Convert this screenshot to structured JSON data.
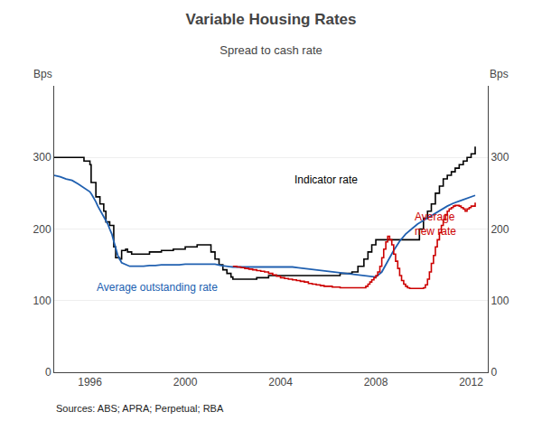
{
  "chart_data": {
    "type": "line",
    "title": "Variable Housing Rates",
    "subtitle": "Spread to cash rate",
    "ylabel": "Bps",
    "ylabel_right": "Bps",
    "source": "Sources: ABS; APRA; Perpetual; RBA",
    "xlim": [
      1994.5,
      2012.7
    ],
    "ylim": [
      0,
      400
    ],
    "yticks": [
      0,
      100,
      200,
      300
    ],
    "y2lim": [
      0,
      400
    ],
    "y2ticks": [
      0,
      100,
      200,
      300
    ],
    "xticks": [
      1996,
      2000,
      2004,
      2008,
      2012
    ],
    "grid": "y",
    "annotations": [
      {
        "text": "Indicator rate",
        "x": 2004.5,
        "y": 258,
        "color": "#000000"
      },
      {
        "text": "Average outstanding rate",
        "x": 1996.2,
        "y": 107,
        "color": "#2060b0"
      },
      {
        "text": "Average\nnew rate",
        "x": 2009.55,
        "y": 185,
        "color": "#cc0000"
      }
    ],
    "series": [
      {
        "type": "step",
        "color": "#000000",
        "x": [
          1994.5,
          1994.9,
          1995.0,
          1995.5,
          1995.75,
          1996.0,
          1996.05,
          1996.25,
          1996.42,
          1996.58,
          1996.67,
          1996.83,
          1997.0,
          1997.08,
          1997.25,
          1997.33,
          1997.5,
          1997.58,
          1997.75,
          1998.0,
          1998.5,
          1999.0,
          1999.5,
          2000.0,
          2000.5,
          2001.0,
          2001.08,
          2001.25,
          2001.42,
          2001.58,
          2001.75,
          2001.92,
          2002.0,
          2002.5,
          2003.0,
          2003.5,
          2004.0,
          2004.5,
          2005.0,
          2005.5,
          2006.0,
          2006.5,
          2007.0,
          2007.25,
          2007.5,
          2007.67,
          2007.83,
          2008.0,
          2008.17,
          2008.33,
          2008.5,
          2008.67,
          2008.83,
          2009.0,
          2009.17,
          2009.33,
          2009.5,
          2009.67,
          2009.83,
          2010.0,
          2010.17,
          2010.33,
          2010.5,
          2010.67,
          2010.83,
          2011.0,
          2011.17,
          2011.33,
          2011.5,
          2011.67,
          2011.83,
          2012.0,
          2012.17
        ],
        "values": [
          300,
          300,
          300,
          300,
          295,
          290,
          265,
          245,
          235,
          225,
          210,
          205,
          175,
          160,
          158,
          170,
          172,
          168,
          165,
          165,
          168,
          170,
          172,
          175,
          178,
          178,
          168,
          158,
          150,
          143,
          138,
          133,
          130,
          130,
          132,
          135,
          135,
          135,
          135,
          135,
          135,
          138,
          140,
          148,
          158,
          168,
          178,
          185,
          185,
          185,
          185,
          185,
          185,
          185,
          185,
          185,
          185,
          185,
          200,
          215,
          225,
          235,
          250,
          260,
          270,
          275,
          280,
          285,
          290,
          295,
          300,
          305,
          315
        ]
      },
      {
        "type": "line",
        "color": "#2060b0",
        "x": [
          1994.5,
          1994.75,
          1995.0,
          1995.25,
          1995.5,
          1995.75,
          1996.0,
          1996.08,
          1996.17,
          1996.25,
          1996.33,
          1996.42,
          1996.5,
          1996.58,
          1996.67,
          1996.75,
          1996.83,
          1996.92,
          1997.0,
          1997.17,
          1997.33,
          1997.5,
          1997.67,
          1997.83,
          1998.0,
          1998.25,
          1998.5,
          1998.75,
          1999.0,
          1999.25,
          1999.5,
          1999.75,
          2000.0,
          2000.25,
          2000.5,
          2000.75,
          2001.0,
          2001.25,
          2001.5,
          2001.75,
          2002.0,
          2002.25,
          2002.5,
          2002.75,
          2003.0,
          2003.25,
          2003.5,
          2003.75,
          2004.0,
          2004.25,
          2004.5,
          2004.75,
          2005.0,
          2005.25,
          2005.5,
          2005.75,
          2006.0,
          2006.25,
          2006.5,
          2006.75,
          2007.0,
          2007.25,
          2007.5,
          2007.75,
          2008.0,
          2008.25,
          2008.5,
          2008.75,
          2009.0,
          2009.25,
          2009.5,
          2009.75,
          2010.0,
          2010.25,
          2010.5,
          2010.75,
          2011.0,
          2011.25,
          2011.5,
          2011.75,
          2012.0,
          2012.17
        ],
        "values": [
          275,
          273,
          270,
          268,
          263,
          258,
          252,
          248,
          243,
          238,
          232,
          227,
          222,
          217,
          212,
          207,
          200,
          193,
          183,
          163,
          153,
          150,
          148,
          148,
          148,
          148,
          149,
          149,
          150,
          150,
          150,
          150,
          151,
          151,
          151,
          151,
          151,
          151,
          149,
          148,
          147,
          147,
          147,
          147,
          147,
          147,
          147,
          147,
          147,
          147,
          147,
          146,
          145,
          144,
          143,
          142,
          141,
          140,
          139,
          138,
          137,
          136,
          135,
          134,
          133,
          140,
          155,
          170,
          183,
          193,
          200,
          207,
          212,
          217,
          222,
          228,
          232,
          236,
          239,
          242,
          245,
          247
        ]
      },
      {
        "type": "step",
        "color": "#cc0000",
        "x": [
          2002.0,
          2002.17,
          2002.33,
          2002.5,
          2002.67,
          2002.83,
          2003.0,
          2003.17,
          2003.33,
          2003.5,
          2003.67,
          2003.83,
          2004.0,
          2004.17,
          2004.33,
          2004.5,
          2004.67,
          2004.83,
          2005.0,
          2005.17,
          2005.33,
          2005.5,
          2005.67,
          2005.83,
          2006.0,
          2006.17,
          2006.33,
          2006.5,
          2006.67,
          2006.83,
          2007.0,
          2007.17,
          2007.33,
          2007.5,
          2007.58,
          2007.67,
          2007.75,
          2007.83,
          2007.92,
          2008.0,
          2008.08,
          2008.17,
          2008.25,
          2008.33,
          2008.42,
          2008.5,
          2008.58,
          2008.67,
          2008.75,
          2008.83,
          2008.92,
          2009.0,
          2009.08,
          2009.17,
          2009.25,
          2009.33,
          2009.42,
          2009.5,
          2009.67,
          2009.83,
          2010.0,
          2010.08,
          2010.17,
          2010.25,
          2010.33,
          2010.42,
          2010.5,
          2010.58,
          2010.67,
          2010.75,
          2010.83,
          2010.92,
          2011.0,
          2011.08,
          2011.17,
          2011.25,
          2011.33,
          2011.42,
          2011.5,
          2011.58,
          2011.67,
          2011.75,
          2011.83,
          2011.92,
          2012.0,
          2012.17
        ],
        "values": [
          148,
          147,
          146,
          145,
          144,
          143,
          142,
          141,
          140,
          138,
          136,
          134,
          132,
          131,
          130,
          129,
          128,
          127,
          126,
          124,
          123,
          122,
          121,
          120,
          120,
          119,
          119,
          118,
          118,
          118,
          118,
          118,
          118,
          118,
          120,
          123,
          126,
          129,
          132,
          135,
          140,
          148,
          160,
          172,
          182,
          190,
          185,
          178,
          165,
          155,
          145,
          135,
          128,
          123,
          120,
          118,
          117,
          117,
          117,
          117,
          118,
          122,
          130,
          140,
          152,
          163,
          175,
          185,
          195,
          205,
          213,
          220,
          225,
          228,
          230,
          232,
          233,
          233,
          232,
          230,
          228,
          225,
          228,
          230,
          232,
          237
        ]
      }
    ]
  }
}
